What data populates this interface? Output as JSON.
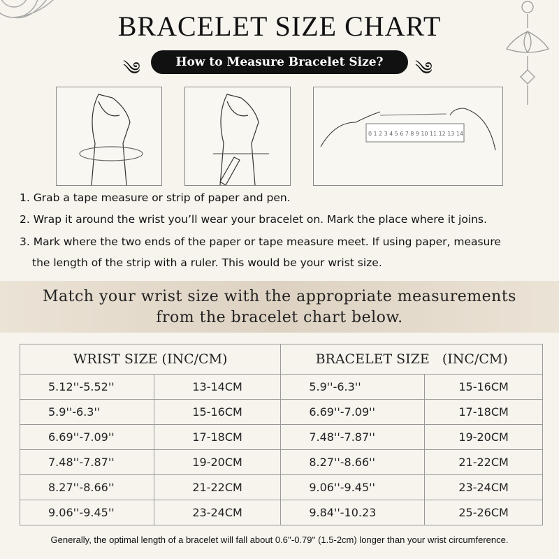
{
  "title": "BRACELET SIZE CHART",
  "subtitle": "How to Measure Bracelet Size?",
  "ruler_ticks": [
    "0",
    "1",
    "2",
    "3",
    "4",
    "5",
    "6",
    "7",
    "8",
    "9",
    "10",
    "11",
    "12",
    "13",
    "14"
  ],
  "steps": [
    "1. Grab a tape measure or strip of paper and pen.",
    "2. Wrap it around the wrist you’ll wear your bracelet on. Mark the place where it joins.",
    "3. Mark where the two ends of the paper or tape measure meet. If using paper, measure",
    "the length of the strip with a ruler. This would be your wrist size."
  ],
  "banner": [
    "Match your wrist size with the appropriate measurements",
    "from the bracelet chart below."
  ],
  "table": {
    "headers": [
      "WRIST SIZE (INC/CM)",
      "BRACELET SIZE   (INC/CM)"
    ],
    "rows": [
      [
        "5.12''-5.52''",
        "13-14CM",
        "5.9''-6.3''",
        "15-16CM"
      ],
      [
        "5.9''-6.3''",
        "15-16CM",
        "6.69''-7.09''",
        "17-18CM"
      ],
      [
        "6.69''-7.09''",
        "17-18CM",
        "7.48''-7.87''",
        "19-20CM"
      ],
      [
        "7.48''-7.87''",
        "19-20CM",
        "8.27''-8.66''",
        "21-22CM"
      ],
      [
        "8.27''-8.66''",
        "21-22CM",
        "9.06''-9.45''",
        "23-24CM"
      ],
      [
        "9.06''-9.45''",
        "23-24CM",
        "9.84''-10.23",
        "25-26CM"
      ]
    ]
  },
  "note": "Generally, the optimal length of a bracelet will fall about 0.6''-0.79'' (1.5-2cm) longer than your wrist circumference."
}
